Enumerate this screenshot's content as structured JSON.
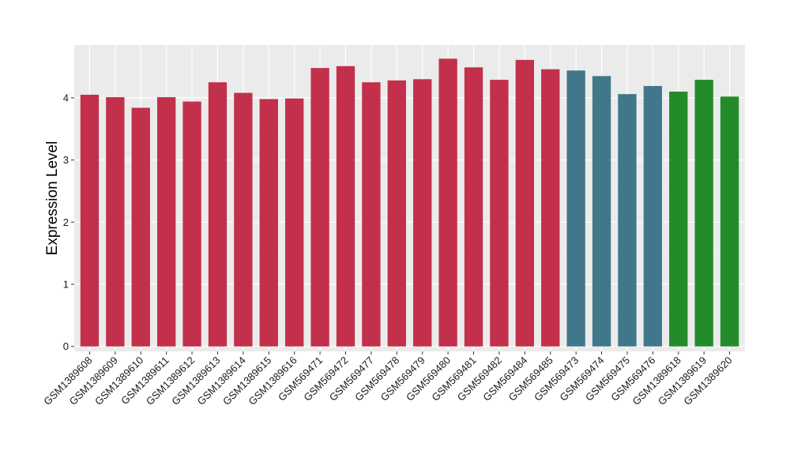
{
  "chart_data": {
    "type": "bar",
    "title": "",
    "xlabel": "",
    "ylabel": "Expression Level",
    "ylim": [
      -0.08,
      4.85
    ],
    "yticks": [
      0,
      1,
      2,
      3,
      4
    ],
    "grid": true,
    "legend": "none",
    "colors": {
      "panel_background": "#EBEBEB",
      "grid_major": "#FFFFFF",
      "grid_minor": "#F4F4F4"
    },
    "categories": [
      "GSM1389608",
      "GSM1389609",
      "GSM1389610",
      "GSM1389611",
      "GSM1389612",
      "GSM1389613",
      "GSM1389614",
      "GSM1389615",
      "GSM1389616",
      "GSM569471",
      "GSM569472",
      "GSM569477",
      "GSM569478",
      "GSM569479",
      "GSM569480",
      "GSM569481",
      "GSM569482",
      "GSM569484",
      "GSM569485",
      "GSM569473",
      "GSM569474",
      "GSM569475",
      "GSM569476",
      "GSM1389618",
      "GSM1389619",
      "GSM1389620"
    ],
    "values": [
      4.05,
      4.01,
      3.84,
      4.01,
      3.94,
      4.25,
      4.08,
      3.98,
      3.99,
      4.48,
      4.51,
      4.25,
      4.28,
      4.3,
      4.63,
      4.49,
      4.29,
      4.61,
      4.46,
      4.44,
      4.35,
      4.06,
      4.19,
      4.1,
      4.29,
      4.02
    ],
    "bar_colors": [
      "#C2304B",
      "#C2304B",
      "#C2304B",
      "#C2304B",
      "#C2304B",
      "#C2304B",
      "#C2304B",
      "#C2304B",
      "#C2304B",
      "#C2304B",
      "#C2304B",
      "#C2304B",
      "#C2304B",
      "#C2304B",
      "#C2304B",
      "#C2304B",
      "#C2304B",
      "#C2304B",
      "#C2304B",
      "#41778A",
      "#41778A",
      "#41778A",
      "#41778A",
      "#238B2A",
      "#238B2A",
      "#238B2A"
    ]
  }
}
